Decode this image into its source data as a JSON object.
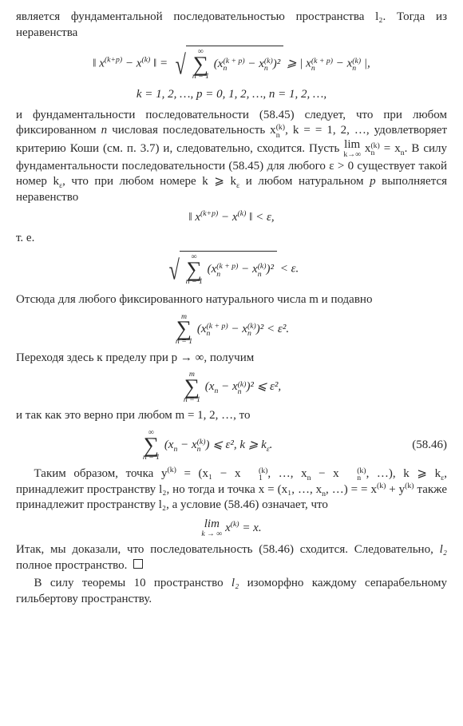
{
  "p1": "является фундаментальной последовательностью пространства l₂. Тогда из неравенства",
  "eq1_left": "‖ x",
  "eq1_supA": "(k+p)",
  "eq1_mid1": " − x",
  "eq1_supB": "(k)",
  "eq1_mid2": " ‖ = ",
  "eq1_sum_top": "∞",
  "eq1_sum_bot": "n = 1",
  "eq1_radicand_a": "(x",
  "eq1_r_sub1": "n",
  "eq1_r_sup1": "(k + p)",
  "eq1_radicand_b": " − x",
  "eq1_r_sub2": "n",
  "eq1_r_sup2": "(k)",
  "eq1_radicand_c": ")²",
  "eq1_geq": " ⩾ | x",
  "eq1_g_sub1": "n",
  "eq1_g_sup1": "(k + p)",
  "eq1_g_mid": " − x",
  "eq1_g_sub2": "n",
  "eq1_g_sup2": "(k)",
  "eq1_end": " |,",
  "eq1_line2": "k = 1, 2, …,   p = 0, 1, 2, …,   n = 1, 2, …,",
  "p2a": "и фундаментальности последовательности (58.45) следует, что при любом фиксированном ",
  "p2_n": "n",
  "p2b": " числовая последовательность x",
  "p2_sub": "n",
  "p2_sup": "(k)",
  "p2c": ",  k = = 1, 2, …, удовлетворяет критерию Коши (см. п. 3.7) и, следовательно, сходится. Пусть ",
  "p2_lim": "lim",
  "p2_limunder": "k→∞",
  "p2d": " x",
  "p2d_sub": "n",
  "p2d_sup": "(k)",
  "p2e": " = x",
  "p2e_sub": "n",
  "p2f": ". В силу фундаментальности последовательности (58.45) для любого ε > 0 существует такой номер k",
  "p2f_sub": "ε",
  "p2g": ", что при любом номере k ⩾ k",
  "p2g_sub": "ε",
  "p2h": " и любом натуральном ",
  "p2_p": "p",
  "p2i": " выполняется неравенство",
  "eq2": "‖ x",
  "eq2_supA": "(k+p)",
  "eq2_mid": " − x",
  "eq2_supB": "(k)",
  "eq2_end": " ‖ < ε,",
  "p_te": "т. е.",
  "eq3_sum_top": "∞",
  "eq3_sum_bot": "n = 1",
  "eq3_a": "(x",
  "eq3_sub1": "n",
  "eq3_sup1": "(k + p)",
  "eq3_b": " − x",
  "eq3_sub2": "n",
  "eq3_sup2": "(k)",
  "eq3_c": ")²",
  "eq3_end": " < ε.",
  "p3": "Отсюда для любого фиксированного натурального числа m и подавно",
  "eq4_sum_top": "m",
  "eq4_sum_bot": "n = 1",
  "eq4_a": "(x",
  "eq4_sub1": "n",
  "eq4_sup1": "(k + p)",
  "eq4_b": " − x",
  "eq4_sub2": "n",
  "eq4_sup2": "(k)",
  "eq4_c": ")² < ε².",
  "p4": "Переходя здесь к пределу при p → ∞, получим",
  "eq5_sum_top": "m",
  "eq5_sum_bot": "n = 1",
  "eq5_a": "(x",
  "eq5_sub1": "n",
  "eq5_b": " − x",
  "eq5_sub2": "n",
  "eq5_sup2": "(k)",
  "eq5_c": ")² ⩽ ε²,",
  "p5": "и так как это верно при любом m = 1, 2, …, то",
  "eq6_sum_top": "∞",
  "eq6_sum_bot": "n = 1",
  "eq6_a": "(x",
  "eq6_sub1": "n",
  "eq6_b": " − x",
  "eq6_sub2": "n",
  "eq6_sup2": "(k)",
  "eq6_c": ") ⩽ ε²,   k ⩾ k",
  "eq6_sub3": "ε",
  "eq6_d": ".",
  "eq6_label": "(58.46)",
  "p6a": "Таким образом, точка y",
  "p6_sup1": "(k)",
  "p6b": " = (x₁ − x",
  "p6_sub1": "1",
  "p6_sup2": "(k)",
  "p6c": ", …, x",
  "p6_subn": "n",
  "p6d": " − x",
  "p6_subn2": "n",
  "p6_sup3": "(k)",
  "p6e": ", …),  k ⩾ k",
  "p6_sub_eps": "ε",
  "p6f": ", принадлежит пространству l₂, но тогда и точка x = (x₁, …, x",
  "p6_subn3": "n",
  "p6g": ", …) = = x",
  "p6_sup4": "(k)",
  "p6h": " + y",
  "p6_sup5": "(k)",
  "p6i": " также принадлежит пространству l₂, а условие (58.46) означает, что",
  "eq7_lim": "lim",
  "eq7_under": "k → ∞",
  "eq7_a": " x",
  "eq7_sup": "(k)",
  "eq7_b": " = x.",
  "p7a": "Итак, мы доказали, что последовательность (58.46) сходится. Следовательно, ",
  "p7_l2": "l₂",
  "p7b": " полное пространство.",
  "p8a": "В силу теоремы 10 пространство ",
  "p8_l2": "l₂",
  "p8b": " изоморфно каждому сепарабельному гильбертову пространству."
}
